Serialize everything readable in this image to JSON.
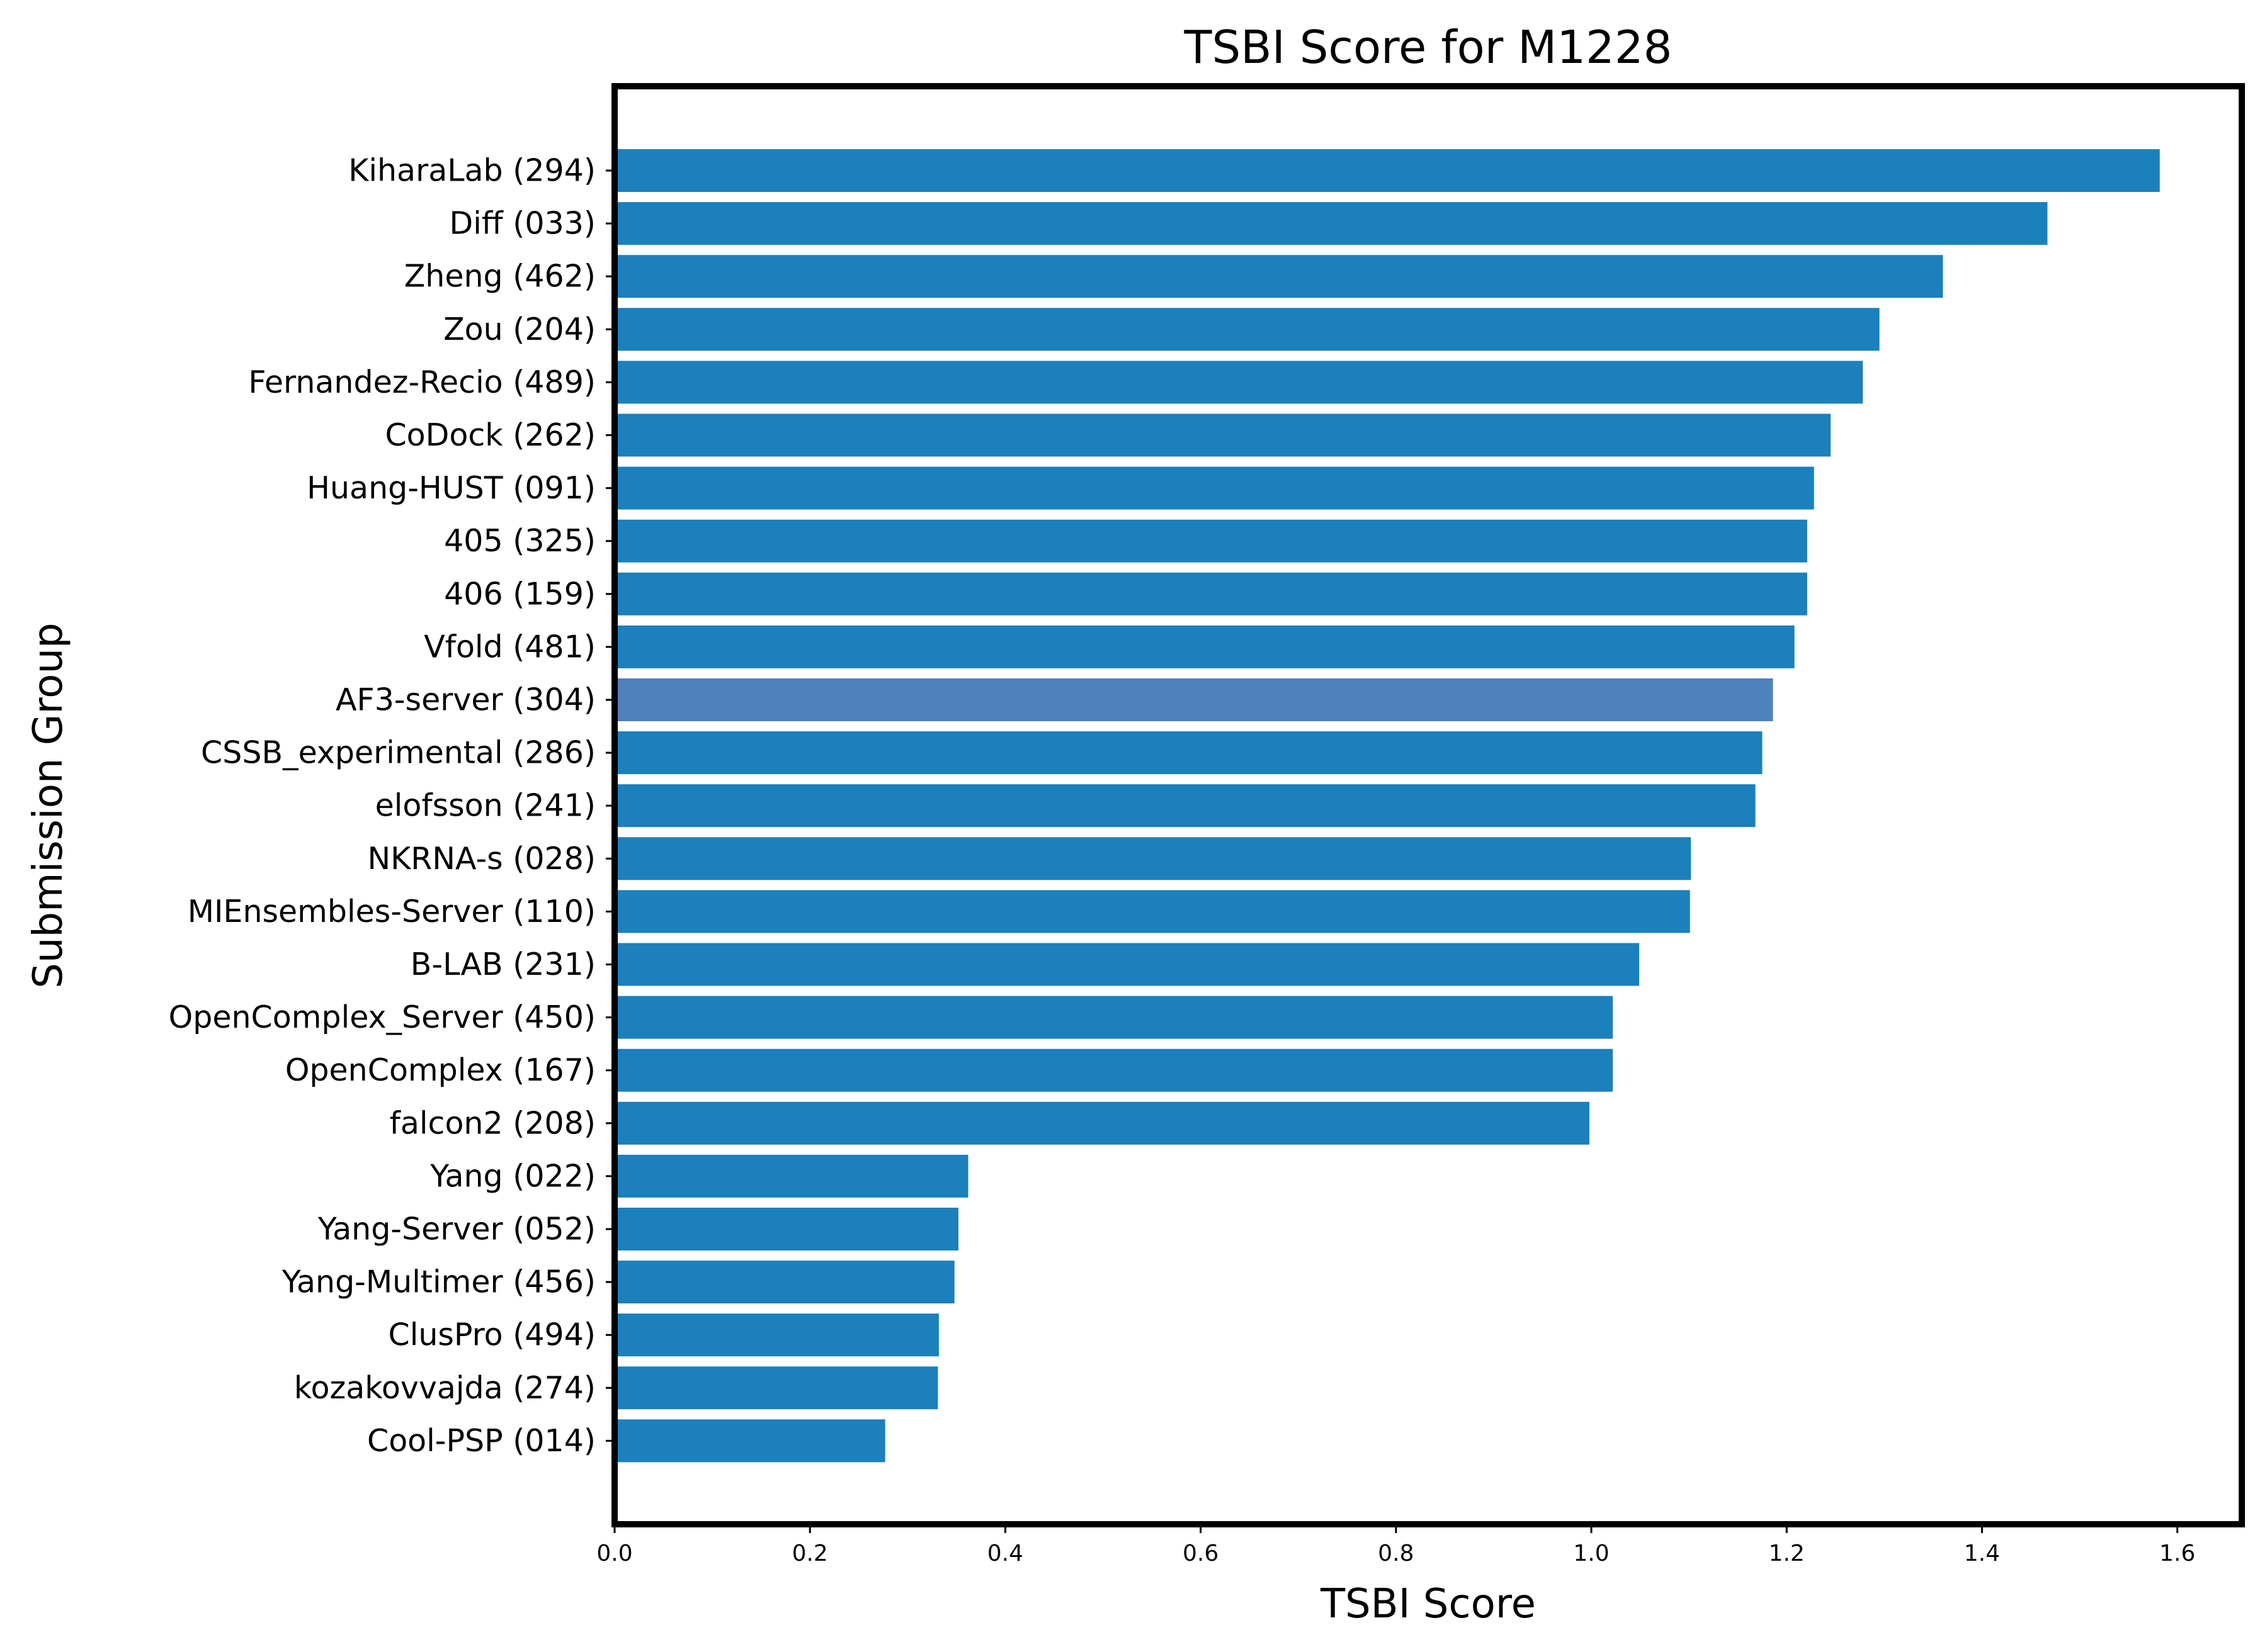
{
  "chart_data": {
    "type": "bar",
    "orientation": "horizontal",
    "title": "TSBI Score for M1228",
    "xlabel": "TSBI Score",
    "ylabel": "Submission Group",
    "xlim": [
      0,
      1.666
    ],
    "x_ticks": [
      "0.0",
      "0.2",
      "0.4",
      "0.6",
      "0.8",
      "1.0",
      "1.2",
      "1.4",
      "1.6"
    ],
    "grid": false,
    "bar_color": "#1b80bc",
    "highlight_color": "#4f81bd",
    "highlight_category": "AF3-server (304)",
    "categories": [
      "KiharaLab (294)",
      "Diff (033)",
      "Zheng (462)",
      "Zou (204)",
      "Fernandez-Recio (489)",
      "CoDock (262)",
      "Huang-HUST (091)",
      "405 (325)",
      "406 (159)",
      "Vfold (481)",
      "AF3-server (304)",
      "CSSB_experimental (286)",
      "elofsson (241)",
      "NKRNA-s (028)",
      "MIEnsembles-Server (110)",
      "B-LAB (231)",
      "OpenComplex_Server (450)",
      "OpenComplex (167)",
      "falcon2 (208)",
      "Yang (022)",
      "Yang-Server (052)",
      "Yang-Multimer (456)",
      "ClusPro (494)",
      "kozakovvajda (274)",
      "Cool-PSP (014)"
    ],
    "values": [
      1.582,
      1.467,
      1.36,
      1.295,
      1.278,
      1.245,
      1.228,
      1.221,
      1.221,
      1.208,
      1.186,
      1.175,
      1.168,
      1.102,
      1.101,
      1.049,
      1.022,
      1.022,
      0.998,
      0.362,
      0.352,
      0.348,
      0.332,
      0.331,
      0.277
    ]
  }
}
